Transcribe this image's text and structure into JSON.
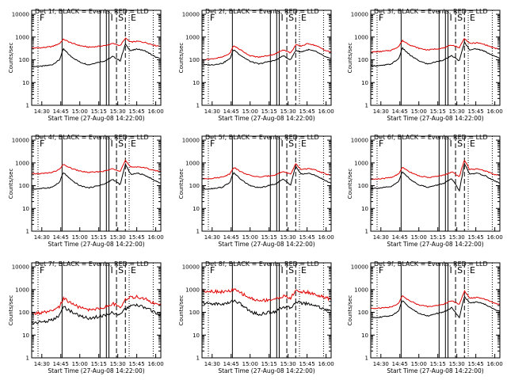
{
  "colors": {
    "events": "#000000",
    "lld": "#e00000",
    "frame": "#000000",
    "background": "#ffffff"
  },
  "common": {
    "ylabel": "Counts/sec",
    "xlabel": "Start Time (27-Aug-08 14:22:00)",
    "x_ticks": [
      "14:30",
      "14:45",
      "15:00",
      "15:15",
      "15:30",
      "15:45",
      "16:00"
    ],
    "y_ticks": [
      "1",
      "10",
      "100",
      "1000",
      "10000"
    ],
    "marker_labels": {
      "F": "F",
      "I": "I",
      "S": "S",
      "E": "E"
    },
    "y_scale": "log",
    "ylim": [
      1,
      15000
    ],
    "xlim": [
      "14:22",
      "16:04"
    ]
  },
  "chart_data": [
    {
      "type": "line",
      "title": "Det 1f, BLACK = Events, RED = LLD",
      "noisy": false,
      "series": [
        {
          "name": "Events",
          "color": "#000000",
          "x": [
            "14:22",
            "14:30",
            "14:38",
            "14:44",
            "14:47",
            "14:53",
            "15:00",
            "15:07",
            "15:13",
            "15:20",
            "15:26",
            "15:32",
            "15:36",
            "15:40",
            "15:46",
            "15:52",
            "16:00",
            "16:04"
          ],
          "values": [
            50,
            52,
            60,
            100,
            300,
            140,
            80,
            60,
            75,
            90,
            140,
            90,
            500,
            250,
            300,
            240,
            130,
            110
          ]
        },
        {
          "name": "LLD",
          "color": "#e00000",
          "x": [
            "14:22",
            "14:30",
            "14:38",
            "14:44",
            "14:47",
            "14:53",
            "15:00",
            "15:07",
            "15:13",
            "15:20",
            "15:26",
            "15:32",
            "15:36",
            "15:40",
            "15:46",
            "15:52",
            "16:00",
            "16:04"
          ],
          "values": [
            330,
            340,
            380,
            520,
            800,
            560,
            420,
            360,
            380,
            420,
            520,
            420,
            900,
            600,
            650,
            570,
            420,
            400
          ]
        }
      ]
    },
    {
      "type": "line",
      "title": "Det 2f, BLACK = Events, RED = LLD",
      "noisy": false,
      "series": [
        {
          "name": "Events",
          "color": "#000000",
          "x": [
            "14:22",
            "14:30",
            "14:38",
            "14:44",
            "14:47",
            "14:53",
            "15:00",
            "15:07",
            "15:13",
            "15:20",
            "15:26",
            "15:32",
            "15:36",
            "15:40",
            "15:46",
            "15:52",
            "16:00",
            "16:04"
          ],
          "values": [
            60,
            60,
            70,
            110,
            280,
            150,
            85,
            65,
            80,
            95,
            150,
            100,
            260,
            220,
            280,
            230,
            130,
            110
          ]
        },
        {
          "name": "LLD",
          "color": "#e00000",
          "x": [
            "14:22",
            "14:30",
            "14:38",
            "14:44",
            "14:47",
            "14:53",
            "15:00",
            "15:07",
            "15:13",
            "15:20",
            "15:26",
            "15:32",
            "15:36",
            "15:40",
            "15:46",
            "15:52",
            "16:00",
            "16:04"
          ],
          "values": [
            100,
            110,
            130,
            190,
            420,
            260,
            150,
            130,
            150,
            180,
            280,
            200,
            450,
            400,
            520,
            420,
            250,
            220
          ]
        }
      ]
    },
    {
      "type": "line",
      "title": "Det 3f, BLACK = Events, RED = LLD",
      "noisy": false,
      "series": [
        {
          "name": "Events",
          "color": "#000000",
          "x": [
            "14:22",
            "14:30",
            "14:38",
            "14:44",
            "14:47",
            "14:53",
            "15:00",
            "15:07",
            "15:13",
            "15:20",
            "15:26",
            "15:32",
            "15:36",
            "15:40",
            "15:46",
            "15:52",
            "16:00",
            "16:04"
          ],
          "values": [
            55,
            55,
            65,
            110,
            330,
            160,
            90,
            65,
            80,
            100,
            150,
            90,
            600,
            280,
            300,
            240,
            140,
            120
          ]
        },
        {
          "name": "LLD",
          "color": "#e00000",
          "x": [
            "14:22",
            "14:30",
            "14:38",
            "14:44",
            "14:47",
            "14:53",
            "15:00",
            "15:07",
            "15:13",
            "15:20",
            "15:26",
            "15:32",
            "15:36",
            "15:40",
            "15:46",
            "15:52",
            "16:00",
            "16:04"
          ],
          "values": [
            220,
            230,
            260,
            380,
            700,
            450,
            320,
            270,
            300,
            330,
            450,
            340,
            900,
            520,
            560,
            470,
            320,
            300
          ]
        }
      ]
    },
    {
      "type": "line",
      "title": "Det 4f, BLACK = Events, RED = LLD",
      "noisy": false,
      "series": [
        {
          "name": "Events",
          "color": "#000000",
          "x": [
            "14:22",
            "14:30",
            "14:38",
            "14:44",
            "14:47",
            "14:53",
            "15:00",
            "15:07",
            "15:13",
            "15:20",
            "15:26",
            "15:32",
            "15:36",
            "15:40",
            "15:46",
            "15:52",
            "16:00",
            "16:04"
          ],
          "values": [
            70,
            75,
            85,
            140,
            380,
            180,
            100,
            80,
            95,
            120,
            190,
            110,
            900,
            320,
            350,
            280,
            160,
            130
          ]
        },
        {
          "name": "LLD",
          "color": "#e00000",
          "x": [
            "14:22",
            "14:30",
            "14:38",
            "14:44",
            "14:47",
            "14:53",
            "15:00",
            "15:07",
            "15:13",
            "15:20",
            "15:26",
            "15:32",
            "15:36",
            "15:40",
            "15:46",
            "15:52",
            "16:00",
            "16:04"
          ],
          "values": [
            330,
            340,
            380,
            520,
            850,
            580,
            440,
            380,
            400,
            440,
            560,
            440,
            1300,
            650,
            680,
            600,
            450,
            420
          ]
        }
      ]
    },
    {
      "type": "line",
      "title": "Det 5f, BLACK = Events, RED = LLD",
      "noisy": false,
      "series": [
        {
          "name": "Events",
          "color": "#000000",
          "x": [
            "14:22",
            "14:30",
            "14:38",
            "14:44",
            "14:47",
            "14:53",
            "15:00",
            "15:07",
            "15:13",
            "15:20",
            "15:26",
            "15:32",
            "15:36",
            "15:40",
            "15:46",
            "15:52",
            "16:00",
            "16:04"
          ],
          "values": [
            70,
            75,
            85,
            140,
            380,
            180,
            100,
            80,
            95,
            120,
            190,
            110,
            750,
            320,
            350,
            280,
            160,
            130
          ]
        },
        {
          "name": "LLD",
          "color": "#e00000",
          "x": [
            "14:22",
            "14:30",
            "14:38",
            "14:44",
            "14:47",
            "14:53",
            "15:00",
            "15:07",
            "15:13",
            "15:20",
            "15:26",
            "15:32",
            "15:36",
            "15:40",
            "15:46",
            "15:52",
            "16:00",
            "16:04"
          ],
          "values": [
            200,
            210,
            240,
            330,
            650,
            400,
            280,
            240,
            260,
            300,
            420,
            320,
            900,
            520,
            560,
            480,
            320,
            300
          ]
        }
      ]
    },
    {
      "type": "line",
      "title": "Det 6f, BLACK = Events, RED = LLD",
      "noisy": false,
      "series": [
        {
          "name": "Events",
          "color": "#000000",
          "x": [
            "14:22",
            "14:30",
            "14:38",
            "14:44",
            "14:47",
            "14:53",
            "15:00",
            "15:07",
            "15:13",
            "15:20",
            "15:26",
            "15:32",
            "15:36",
            "15:40",
            "15:46",
            "15:52",
            "16:00",
            "16:04"
          ],
          "values": [
            75,
            80,
            90,
            150,
            420,
            190,
            110,
            85,
            100,
            130,
            200,
            60,
            950,
            330,
            350,
            280,
            160,
            130
          ]
        },
        {
          "name": "LLD",
          "color": "#e00000",
          "x": [
            "14:22",
            "14:30",
            "14:38",
            "14:44",
            "14:47",
            "14:53",
            "15:00",
            "15:07",
            "15:13",
            "15:20",
            "15:26",
            "15:32",
            "15:36",
            "15:40",
            "15:46",
            "15:52",
            "16:00",
            "16:04"
          ],
          "values": [
            190,
            200,
            230,
            320,
            650,
            400,
            270,
            230,
            250,
            290,
            410,
            250,
            1400,
            520,
            540,
            460,
            310,
            290
          ]
        }
      ]
    },
    {
      "type": "line",
      "title": "Det 7f, BLACK = Events, RED = LLD",
      "noisy": true,
      "series": [
        {
          "name": "Events",
          "color": "#000000",
          "x": [
            "14:22",
            "14:30",
            "14:38",
            "14:44",
            "14:47",
            "14:53",
            "15:00",
            "15:07",
            "15:13",
            "15:20",
            "15:26",
            "15:32",
            "15:36",
            "15:40",
            "15:46",
            "15:52",
            "16:00",
            "16:04"
          ],
          "values": [
            35,
            38,
            45,
            70,
            180,
            110,
            70,
            55,
            62,
            75,
            100,
            75,
            140,
            190,
            200,
            160,
            95,
            80
          ]
        },
        {
          "name": "LLD",
          "color": "#e00000",
          "x": [
            "14:22",
            "14:30",
            "14:38",
            "14:44",
            "14:47",
            "14:53",
            "15:00",
            "15:07",
            "15:13",
            "15:20",
            "15:26",
            "15:32",
            "15:36",
            "15:40",
            "15:46",
            "15:52",
            "16:00",
            "16:04"
          ],
          "values": [
            90,
            95,
            110,
            170,
            420,
            260,
            160,
            130,
            140,
            170,
            240,
            170,
            380,
            450,
            480,
            380,
            230,
            200
          ]
        }
      ]
    },
    {
      "type": "line",
      "title": "Det 8f, BLACK = Events, RED = LLD",
      "noisy": true,
      "series": [
        {
          "name": "Events",
          "color": "#000000",
          "x": [
            "14:22",
            "14:30",
            "14:38",
            "14:44",
            "14:47",
            "14:53",
            "15:00",
            "15:07",
            "15:13",
            "15:20",
            "15:26",
            "15:32",
            "15:36",
            "15:40",
            "15:46",
            "15:52",
            "16:00",
            "16:04"
          ],
          "values": [
            250,
            240,
            230,
            260,
            350,
            220,
            110,
            80,
            95,
            110,
            180,
            150,
            300,
            260,
            240,
            200,
            130,
            110
          ]
        },
        {
          "name": "LLD",
          "color": "#e00000",
          "x": [
            "14:22",
            "14:30",
            "14:38",
            "14:44",
            "14:47",
            "14:53",
            "15:00",
            "15:07",
            "15:13",
            "15:20",
            "15:26",
            "15:32",
            "15:36",
            "15:40",
            "15:46",
            "15:52",
            "16:00",
            "16:04"
          ],
          "values": [
            900,
            850,
            800,
            850,
            1000,
            700,
            420,
            320,
            350,
            380,
            520,
            420,
            900,
            800,
            750,
            600,
            420,
            380
          ]
        }
      ]
    },
    {
      "type": "line",
      "title": "Det 9f, BLACK = Events, RED = LLD",
      "noisy": false,
      "series": [
        {
          "name": "Events",
          "color": "#000000",
          "x": [
            "14:22",
            "14:30",
            "14:38",
            "14:44",
            "14:47",
            "14:53",
            "15:00",
            "15:07",
            "15:13",
            "15:20",
            "15:26",
            "15:32",
            "15:36",
            "15:40",
            "15:46",
            "15:52",
            "16:00",
            "16:04"
          ],
          "values": [
            60,
            62,
            70,
            115,
            330,
            160,
            90,
            70,
            85,
            105,
            160,
            60,
            500,
            260,
            280,
            230,
            130,
            110
          ]
        },
        {
          "name": "LLD",
          "color": "#e00000",
          "x": [
            "14:22",
            "14:30",
            "14:38",
            "14:44",
            "14:47",
            "14:53",
            "15:00",
            "15:07",
            "15:13",
            "15:20",
            "15:26",
            "15:32",
            "15:36",
            "15:40",
            "15:46",
            "15:52",
            "16:00",
            "16:04"
          ],
          "values": [
            150,
            155,
            170,
            250,
            520,
            320,
            210,
            180,
            195,
            230,
            330,
            220,
            900,
            420,
            450,
            380,
            250,
            230
          ]
        }
      ]
    }
  ]
}
